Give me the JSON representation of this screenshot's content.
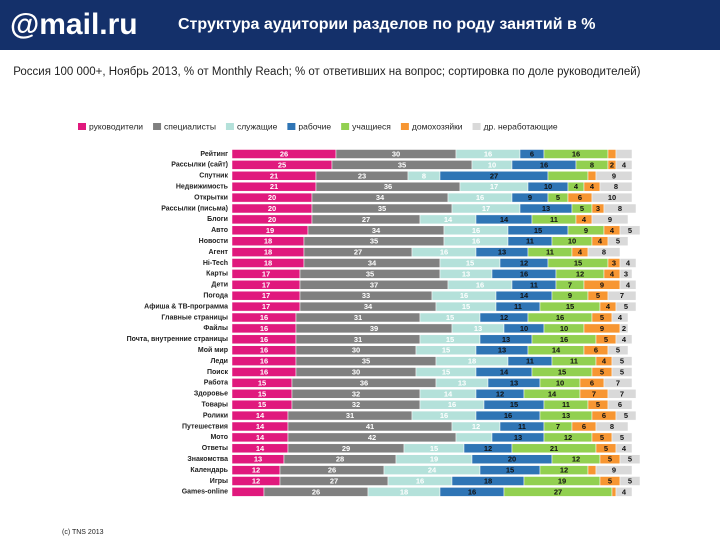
{
  "header": {
    "logo": "@mail.ru"
  },
  "chart_data": {
    "type": "stacked-bar-horizontal",
    "title": "Структура аудитории разделов по роду занятий в %",
    "subtitle": " Россия 100 000+, Ноябрь 2013, % от Monthly Reach; % от ответивших на вопрос; сортировка по доле руководителей)",
    "footnote": "(c) TNS 2013",
    "categories": [
      "Рейтинг",
      "Рассылки (сайт)",
      "Спутник",
      "Недвижимость",
      "Открытки",
      "Рассылки (письма)",
      "Блоги",
      "Авто",
      "Новости",
      "Агент",
      "Hi-Tech",
      "Карты",
      "Дети",
      "Погода",
      "Афиша & ТВ-программа",
      "Главные страницы",
      "Файлы",
      "Почта, внутренние страницы",
      "Мой мир",
      "Леди",
      "Поиск",
      "Работа",
      "Здоровье",
      "Товары",
      "Ролики",
      "Путешествия",
      "Мото",
      "Ответы",
      "Знакомства",
      "Календарь",
      "Игры",
      "Games-online"
    ],
    "series": [
      {
        "name": "руководители",
        "color": "#e0197d",
        "label_color": "#ffffff",
        "values": [
          26,
          25,
          21,
          21,
          20,
          20,
          20,
          19,
          18,
          18,
          18,
          17,
          17,
          17,
          17,
          16,
          16,
          16,
          16,
          16,
          16,
          15,
          15,
          15,
          14,
          14,
          14,
          14,
          13,
          12,
          12,
          8
        ],
        "value_labels": [
          "26",
          "25",
          "21",
          "21",
          "20",
          "20",
          "20",
          "19",
          "18",
          "18",
          "18",
          "17",
          "17",
          "17",
          "17",
          "16",
          "16",
          "16",
          "16",
          "16",
          "16",
          "15",
          "15",
          "15",
          "14",
          "14",
          "14",
          "14",
          "13",
          "12",
          "12",
          null
        ]
      },
      {
        "name": "специалисты",
        "color": "#808080",
        "label_color": "#ffffff",
        "values": [
          30,
          35,
          23,
          36,
          34,
          35,
          27,
          34,
          35,
          27,
          34,
          35,
          37,
          33,
          34,
          31,
          39,
          31,
          30,
          35,
          30,
          36,
          32,
          32,
          31,
          41,
          42,
          29,
          28,
          26,
          27,
          26
        ]
      },
      {
        "name": "служащие",
        "color": "#b4e1da",
        "label_color": "#ffffff",
        "values": [
          16,
          10,
          8,
          17,
          16,
          17,
          14,
          16,
          16,
          16,
          15,
          13,
          16,
          16,
          15,
          15,
          13,
          15,
          15,
          18,
          15,
          13,
          14,
          16,
          16,
          12,
          9,
          15,
          19,
          24,
          16,
          18
        ],
        "value_labels": [
          "16",
          "10",
          "8",
          "17",
          "16",
          "17",
          "14",
          "16",
          "16",
          "16",
          "15",
          "13",
          "16",
          "16",
          "15",
          "15",
          "13",
          "15",
          "15",
          "18",
          "15",
          "13",
          "14",
          "16",
          "16",
          "12",
          null,
          "15",
          "19",
          "24",
          "16",
          "18"
        ]
      },
      {
        "name": "рабочие",
        "color": "#2f75b5",
        "label_color": "#111111",
        "values": [
          6,
          16,
          27,
          10,
          9,
          13,
          14,
          15,
          11,
          13,
          12,
          16,
          11,
          14,
          11,
          12,
          10,
          13,
          13,
          11,
          14,
          13,
          12,
          15,
          16,
          11,
          13,
          12,
          20,
          15,
          18,
          16
        ]
      },
      {
        "name": "учащиеся",
        "color": "#92d050",
        "label_color": "#111111",
        "values": [
          16,
          8,
          10,
          4,
          5,
          5,
          11,
          9,
          10,
          11,
          15,
          12,
          7,
          9,
          15,
          16,
          10,
          16,
          14,
          11,
          15,
          10,
          14,
          11,
          13,
          7,
          12,
          21,
          12,
          12,
          19,
          27
        ],
        "value_labels": [
          "16",
          "8",
          null,
          "4",
          "5",
          "5",
          "11",
          "9",
          "10",
          "11",
          "15",
          "12",
          "7",
          "9",
          "15",
          "16",
          "10",
          "16",
          "14",
          "11",
          "15",
          "10",
          "14",
          "11",
          "13",
          "7",
          "12",
          "21",
          "12",
          "12",
          "19",
          "27"
        ]
      },
      {
        "name": "домохозяйки",
        "color": "#f79632",
        "label_color": "#111111",
        "values": [
          2,
          2,
          2,
          4,
          6,
          3,
          4,
          4,
          4,
          4,
          3,
          4,
          9,
          5,
          4,
          5,
          9,
          5,
          6,
          4,
          5,
          6,
          7,
          5,
          6,
          6,
          5,
          5,
          5,
          2,
          5,
          1
        ],
        "value_labels": [
          null,
          "2",
          null,
          "4",
          "6",
          "3",
          "4",
          "4",
          "4",
          "4",
          "3",
          "4",
          "9",
          "5",
          "4",
          "5",
          "9",
          "5",
          "6",
          "4",
          "5",
          "6",
          "7",
          "5",
          "6",
          "6",
          "5",
          "5",
          "5",
          null,
          "5",
          null
        ]
      },
      {
        "name": "др. неработающие",
        "color": "#d9d9d9",
        "label_color": "#111111",
        "values": [
          4,
          4,
          9,
          8,
          10,
          8,
          9,
          5,
          5,
          8,
          4,
          3,
          4,
          7,
          5,
          4,
          2,
          4,
          5,
          5,
          5,
          7,
          7,
          6,
          5,
          8,
          5,
          4,
          5,
          9,
          5,
          4
        ],
        "value_labels": [
          null,
          "4",
          "9",
          "8",
          "10",
          "8",
          "9",
          "5",
          "5",
          "8",
          "4",
          "3",
          "4",
          "7",
          "5",
          "4",
          "2",
          "4",
          "5",
          "5",
          "5",
          "7",
          "7",
          "6",
          "5",
          "8",
          "5",
          "4",
          "5",
          "9",
          "5",
          "4"
        ]
      }
    ]
  }
}
